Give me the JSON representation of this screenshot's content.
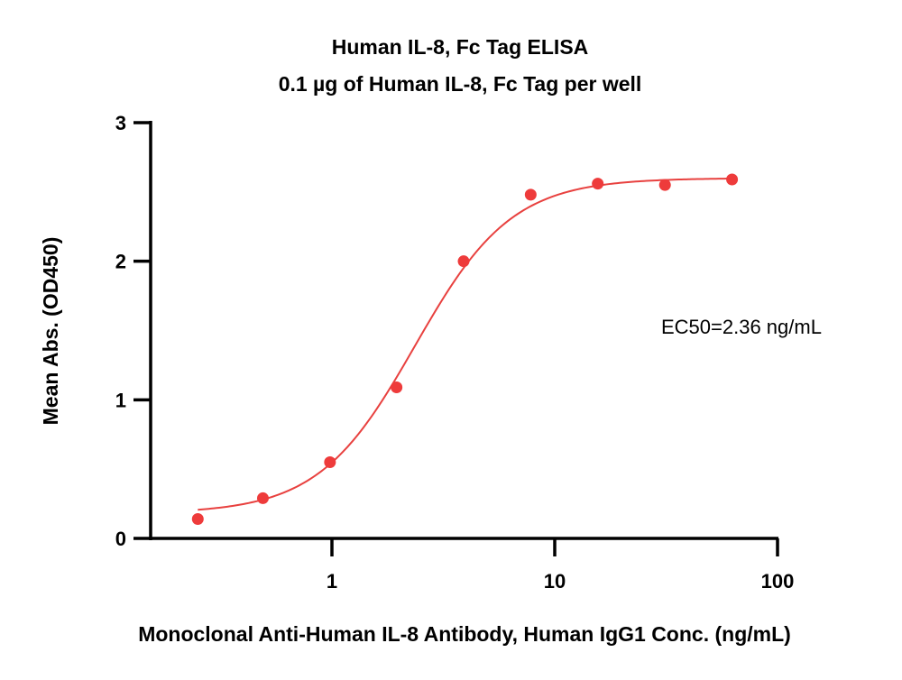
{
  "chart_data": {
    "type": "scatter",
    "title": "Human IL-8, Fc Tag ELISA",
    "subtitle": "0.1 µg of Human IL-8, Fc Tag per well",
    "xlabel": "Monoclonal Anti-Human IL-8 Antibody, Human IgG1 Conc. (ng/mL)",
    "ylabel": "Mean Abs. (OD450)",
    "x_scale": "log",
    "xlim": [
      0.14,
      100
    ],
    "ylim": [
      0,
      3
    ],
    "x_ticks": [
      1,
      10,
      100
    ],
    "x_tick_labels": [
      "1",
      "10",
      "100"
    ],
    "y_ticks": [
      0,
      1,
      2,
      3
    ],
    "y_tick_labels": [
      "0",
      "1",
      "2",
      "3"
    ],
    "grid": false,
    "points": [
      {
        "x": 0.25,
        "y": 0.14
      },
      {
        "x": 0.49,
        "y": 0.29
      },
      {
        "x": 0.98,
        "y": 0.55
      },
      {
        "x": 1.95,
        "y": 1.09
      },
      {
        "x": 3.9,
        "y": 2.0
      },
      {
        "x": 7.8,
        "y": 2.48
      },
      {
        "x": 15.6,
        "y": 2.56
      },
      {
        "x": 31.25,
        "y": 2.55
      },
      {
        "x": 62.5,
        "y": 2.59
      }
    ],
    "fit": {
      "type": "4PL",
      "bottom": 0.18,
      "top": 2.6,
      "ec50": 2.36,
      "hill": 2.0,
      "x_range": [
        0.25,
        62.5
      ]
    },
    "annotation": "EC50=2.36 ng/mL",
    "colors": {
      "points": "#ee3b3b",
      "fit": "#e8413f",
      "axis": "#000000"
    }
  }
}
